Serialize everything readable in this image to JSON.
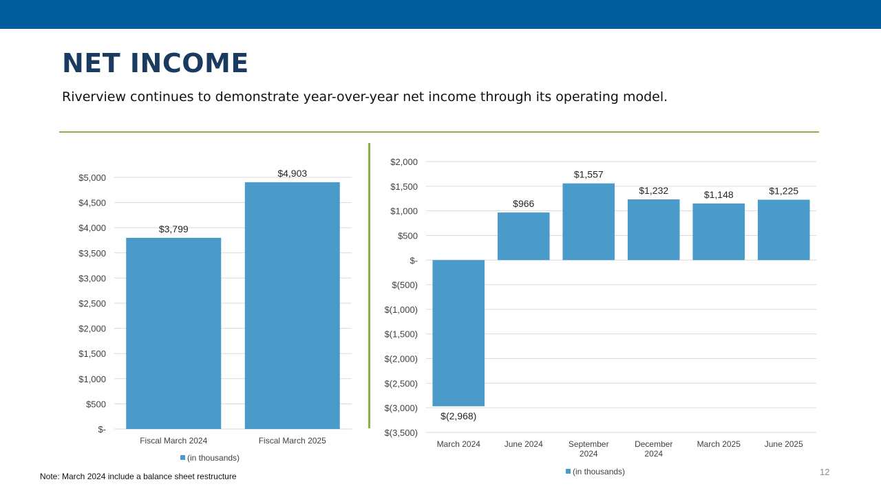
{
  "slide": {
    "title": "NET INCOME",
    "subtitle": "Riverview continues to demonstrate year-over-year  net income through its operating model.",
    "note": "Note: March 2024 include a balance sheet restructure",
    "page_number": "12"
  },
  "colors": {
    "top_bar": "#005b9a",
    "title": "#1b3a5f",
    "accent_rule": "#8db04a",
    "bar": "#4a9bc9",
    "grid": "#d9d9d9"
  },
  "chart_data": [
    {
      "type": "bar",
      "title": "",
      "categories": [
        "Fiscal March 2024",
        "Fiscal March 2025"
      ],
      "values": [
        3799,
        4903
      ],
      "data_labels": [
        "$3,799",
        "$4,903"
      ],
      "ylim": [
        0,
        5000
      ],
      "yticks": [
        0,
        500,
        1000,
        1500,
        2000,
        2500,
        3000,
        3500,
        4000,
        4500,
        5000
      ],
      "ytick_labels": [
        "$-",
        "$500",
        "$1,000",
        "$1,500",
        "$2,000",
        "$2,500",
        "$3,000",
        "$3,500",
        "$4,000",
        "$4,500",
        "$5,000"
      ],
      "legend": "(in thousands)",
      "legend_position": "bottom",
      "grid": true,
      "xlabel": "",
      "ylabel": ""
    },
    {
      "type": "bar",
      "title": "",
      "categories": [
        "March 2024",
        "June 2024",
        "September 2024",
        "December 2024",
        "March 2025",
        "June 2025"
      ],
      "category_lines": [
        [
          "March 2024"
        ],
        [
          "June 2024"
        ],
        [
          "September",
          "2024"
        ],
        [
          "December",
          "2024"
        ],
        [
          "March 2025"
        ],
        [
          "June 2025"
        ]
      ],
      "values": [
        -2968,
        966,
        1557,
        1232,
        1148,
        1225
      ],
      "data_labels": [
        "$(2,968)",
        "$966",
        "$1,557",
        "$1,232",
        "$1,148",
        "$1,225"
      ],
      "ylim": [
        -3500,
        2000
      ],
      "yticks": [
        -3500,
        -3000,
        -2500,
        -2000,
        -1500,
        -1000,
        -500,
        0,
        500,
        1000,
        1500,
        2000
      ],
      "ytick_labels": [
        "$(3,500)",
        "$(3,000)",
        "$(2,500)",
        "$(2,000)",
        "$(1,500)",
        "$(1,000)",
        "$(500)",
        "$-",
        "$500",
        "$1,000",
        "$1,500",
        "$2,000"
      ],
      "legend": "(in thousands)",
      "legend_position": "bottom",
      "grid": true,
      "xlabel": "",
      "ylabel": ""
    }
  ]
}
